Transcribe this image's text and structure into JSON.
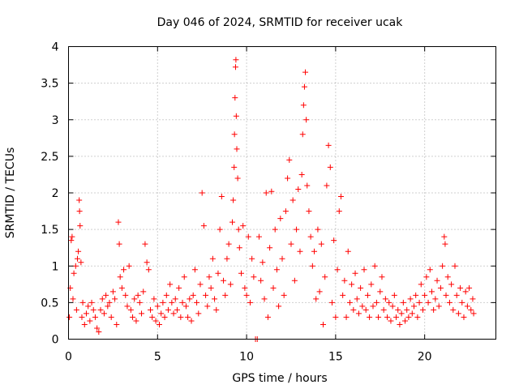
{
  "chart_data": {
    "type": "scatter",
    "title": "Day 046 of 2024, SRMTID for receiver ucak",
    "xlabel": "GPS time / hours",
    "ylabel": "SRMTID / TECUs",
    "xlim": [
      0,
      24
    ],
    "ylim": [
      0,
      4
    ],
    "xticks": [
      0,
      5,
      10,
      15,
      20
    ],
    "xtick_labels": [
      "0",
      "5",
      "10",
      "15",
      "20"
    ],
    "yticks": [
      0,
      0.5,
      1,
      1.5,
      2,
      2.5,
      3,
      3.5,
      4
    ],
    "ytick_labels": [
      "0",
      "0.5",
      "1",
      "1.5",
      "2",
      "2.5",
      "3",
      "3.5",
      "4"
    ],
    "grid": true,
    "marker": "+",
    "series": [
      {
        "name": "SRMTID",
        "color": "#ff0000",
        "points": [
          [
            0.05,
            0.3
          ],
          [
            0.1,
            0.7
          ],
          [
            0.15,
            1.35
          ],
          [
            0.2,
            1.4
          ],
          [
            0.25,
            0.55
          ],
          [
            0.3,
            0.9
          ],
          [
            0.4,
            1.0
          ],
          [
            0.45,
            0.4
          ],
          [
            0.5,
            1.1
          ],
          [
            0.55,
            1.2
          ],
          [
            0.6,
            1.9
          ],
          [
            0.62,
            1.75
          ],
          [
            0.65,
            1.55
          ],
          [
            0.7,
            1.05
          ],
          [
            0.75,
            0.3
          ],
          [
            0.8,
            0.5
          ],
          [
            0.9,
            0.2
          ],
          [
            1.0,
            0.35
          ],
          [
            1.1,
            0.45
          ],
          [
            1.2,
            0.25
          ],
          [
            1.3,
            0.5
          ],
          [
            1.4,
            0.4
          ],
          [
            1.5,
            0.3
          ],
          [
            1.6,
            0.15
          ],
          [
            1.7,
            0.1
          ],
          [
            1.8,
            0.4
          ],
          [
            1.9,
            0.55
          ],
          [
            2.0,
            0.35
          ],
          [
            2.1,
            0.6
          ],
          [
            2.2,
            0.45
          ],
          [
            2.3,
            0.5
          ],
          [
            2.4,
            0.3
          ],
          [
            2.5,
            0.65
          ],
          [
            2.6,
            0.55
          ],
          [
            2.7,
            0.2
          ],
          [
            2.8,
            1.6
          ],
          [
            2.85,
            1.3
          ],
          [
            2.9,
            0.85
          ],
          [
            3.0,
            0.7
          ],
          [
            3.1,
            0.95
          ],
          [
            3.2,
            0.6
          ],
          [
            3.3,
            0.45
          ],
          [
            3.4,
            1.0
          ],
          [
            3.5,
            0.4
          ],
          [
            3.6,
            0.3
          ],
          [
            3.7,
            0.55
          ],
          [
            3.8,
            0.25
          ],
          [
            3.9,
            0.6
          ],
          [
            4.0,
            0.5
          ],
          [
            4.1,
            0.35
          ],
          [
            4.2,
            0.65
          ],
          [
            4.3,
            1.3
          ],
          [
            4.4,
            1.05
          ],
          [
            4.5,
            0.95
          ],
          [
            4.6,
            0.4
          ],
          [
            4.7,
            0.3
          ],
          [
            4.8,
            0.55
          ],
          [
            4.9,
            0.25
          ],
          [
            5.0,
            0.45
          ],
          [
            5.1,
            0.2
          ],
          [
            5.2,
            0.35
          ],
          [
            5.3,
            0.5
          ],
          [
            5.4,
            0.3
          ],
          [
            5.5,
            0.6
          ],
          [
            5.6,
            0.4
          ],
          [
            5.7,
            0.75
          ],
          [
            5.8,
            0.5
          ],
          [
            5.9,
            0.35
          ],
          [
            6.0,
            0.55
          ],
          [
            6.1,
            0.4
          ],
          [
            6.2,
            0.7
          ],
          [
            6.3,
            0.3
          ],
          [
            6.4,
            0.5
          ],
          [
            6.5,
            0.85
          ],
          [
            6.6,
            0.45
          ],
          [
            6.7,
            0.3
          ],
          [
            6.8,
            0.55
          ],
          [
            6.9,
            0.25
          ],
          [
            7.0,
            0.6
          ],
          [
            7.1,
            0.95
          ],
          [
            7.2,
            0.5
          ],
          [
            7.3,
            0.35
          ],
          [
            7.4,
            0.75
          ],
          [
            7.5,
            2.0
          ],
          [
            7.6,
            1.55
          ],
          [
            7.7,
            0.6
          ],
          [
            7.8,
            0.45
          ],
          [
            7.9,
            0.85
          ],
          [
            8.0,
            0.7
          ],
          [
            8.1,
            1.1
          ],
          [
            8.2,
            0.55
          ],
          [
            8.3,
            0.4
          ],
          [
            8.4,
            0.9
          ],
          [
            8.5,
            1.5
          ],
          [
            8.6,
            1.95
          ],
          [
            8.7,
            0.8
          ],
          [
            8.8,
            0.6
          ],
          [
            8.9,
            1.1
          ],
          [
            9.0,
            1.3
          ],
          [
            9.1,
            0.75
          ],
          [
            9.2,
            1.6
          ],
          [
            9.25,
            1.9
          ],
          [
            9.3,
            2.35
          ],
          [
            9.32,
            2.8
          ],
          [
            9.35,
            3.3
          ],
          [
            9.38,
            3.72
          ],
          [
            9.4,
            3.82
          ],
          [
            9.42,
            3.05
          ],
          [
            9.45,
            2.6
          ],
          [
            9.5,
            2.2
          ],
          [
            9.55,
            1.5
          ],
          [
            9.6,
            1.25
          ],
          [
            9.7,
            0.9
          ],
          [
            9.8,
            1.55
          ],
          [
            9.9,
            0.7
          ],
          [
            10.0,
            0.6
          ],
          [
            10.1,
            1.4
          ],
          [
            10.2,
            0.5
          ],
          [
            10.3,
            1.1
          ],
          [
            10.4,
            0.85
          ],
          [
            10.5,
            0.0
          ],
          [
            10.6,
            0.0
          ],
          [
            10.7,
            1.4
          ],
          [
            10.8,
            0.8
          ],
          [
            10.9,
            1.05
          ],
          [
            11.0,
            0.55
          ],
          [
            11.1,
            2.0
          ],
          [
            11.2,
            0.3
          ],
          [
            11.3,
            1.25
          ],
          [
            11.4,
            2.02
          ],
          [
            11.5,
            0.7
          ],
          [
            11.6,
            1.5
          ],
          [
            11.7,
            0.95
          ],
          [
            11.8,
            0.45
          ],
          [
            11.9,
            1.65
          ],
          [
            12.0,
            1.1
          ],
          [
            12.1,
            0.6
          ],
          [
            12.2,
            1.75
          ],
          [
            12.3,
            2.2
          ],
          [
            12.4,
            2.45
          ],
          [
            12.5,
            1.3
          ],
          [
            12.6,
            1.9
          ],
          [
            12.7,
            0.8
          ],
          [
            12.8,
            1.5
          ],
          [
            12.9,
            2.05
          ],
          [
            13.0,
            1.2
          ],
          [
            13.1,
            2.25
          ],
          [
            13.15,
            2.8
          ],
          [
            13.2,
            3.2
          ],
          [
            13.25,
            3.45
          ],
          [
            13.3,
            3.65
          ],
          [
            13.35,
            3.0
          ],
          [
            13.4,
            2.1
          ],
          [
            13.5,
            1.75
          ],
          [
            13.6,
            1.4
          ],
          [
            13.7,
            1.0
          ],
          [
            13.8,
            1.2
          ],
          [
            13.9,
            0.55
          ],
          [
            14.0,
            1.5
          ],
          [
            14.1,
            0.65
          ],
          [
            14.2,
            1.3
          ],
          [
            14.3,
            0.2
          ],
          [
            14.4,
            0.85
          ],
          [
            14.5,
            2.1
          ],
          [
            14.6,
            2.65
          ],
          [
            14.7,
            2.35
          ],
          [
            14.8,
            0.5
          ],
          [
            14.9,
            1.35
          ],
          [
            15.0,
            0.3
          ],
          [
            15.1,
            0.95
          ],
          [
            15.2,
            1.75
          ],
          [
            15.3,
            1.95
          ],
          [
            15.4,
            0.6
          ],
          [
            15.5,
            0.8
          ],
          [
            15.6,
            0.3
          ],
          [
            15.7,
            1.2
          ],
          [
            15.8,
            0.5
          ],
          [
            15.9,
            0.75
          ],
          [
            16.0,
            0.4
          ],
          [
            16.1,
            0.9
          ],
          [
            16.2,
            0.55
          ],
          [
            16.3,
            0.35
          ],
          [
            16.4,
            0.7
          ],
          [
            16.5,
            0.45
          ],
          [
            16.6,
            0.95
          ],
          [
            16.7,
            0.4
          ],
          [
            16.8,
            0.6
          ],
          [
            16.9,
            0.3
          ],
          [
            17.0,
            0.75
          ],
          [
            17.1,
            0.45
          ],
          [
            17.2,
            1.0
          ],
          [
            17.3,
            0.5
          ],
          [
            17.4,
            0.3
          ],
          [
            17.5,
            0.65
          ],
          [
            17.6,
            0.85
          ],
          [
            17.7,
            0.4
          ],
          [
            17.8,
            0.55
          ],
          [
            17.9,
            0.3
          ],
          [
            18.0,
            0.5
          ],
          [
            18.1,
            0.25
          ],
          [
            18.2,
            0.45
          ],
          [
            18.3,
            0.6
          ],
          [
            18.4,
            0.3
          ],
          [
            18.5,
            0.4
          ],
          [
            18.6,
            0.2
          ],
          [
            18.7,
            0.35
          ],
          [
            18.8,
            0.5
          ],
          [
            18.9,
            0.25
          ],
          [
            19.0,
            0.4
          ],
          [
            19.1,
            0.3
          ],
          [
            19.2,
            0.55
          ],
          [
            19.3,
            0.35
          ],
          [
            19.4,
            0.45
          ],
          [
            19.5,
            0.6
          ],
          [
            19.6,
            0.3
          ],
          [
            19.7,
            0.5
          ],
          [
            19.8,
            0.75
          ],
          [
            19.9,
            0.4
          ],
          [
            20.0,
            0.6
          ],
          [
            20.1,
            0.85
          ],
          [
            20.2,
            0.5
          ],
          [
            20.3,
            0.95
          ],
          [
            20.4,
            0.65
          ],
          [
            20.5,
            0.4
          ],
          [
            20.6,
            0.55
          ],
          [
            20.7,
            0.8
          ],
          [
            20.8,
            0.45
          ],
          [
            20.9,
            0.7
          ],
          [
            21.0,
            1.0
          ],
          [
            21.1,
            1.4
          ],
          [
            21.15,
            1.3
          ],
          [
            21.2,
            0.6
          ],
          [
            21.3,
            0.85
          ],
          [
            21.4,
            0.5
          ],
          [
            21.5,
            0.75
          ],
          [
            21.6,
            0.4
          ],
          [
            21.7,
            1.0
          ],
          [
            21.8,
            0.6
          ],
          [
            21.9,
            0.35
          ],
          [
            22.0,
            0.7
          ],
          [
            22.1,
            0.5
          ],
          [
            22.2,
            0.3
          ],
          [
            22.3,
            0.65
          ],
          [
            22.4,
            0.45
          ],
          [
            22.5,
            0.7
          ],
          [
            22.6,
            0.4
          ],
          [
            22.7,
            0.55
          ],
          [
            22.75,
            0.35
          ]
        ]
      }
    ]
  }
}
